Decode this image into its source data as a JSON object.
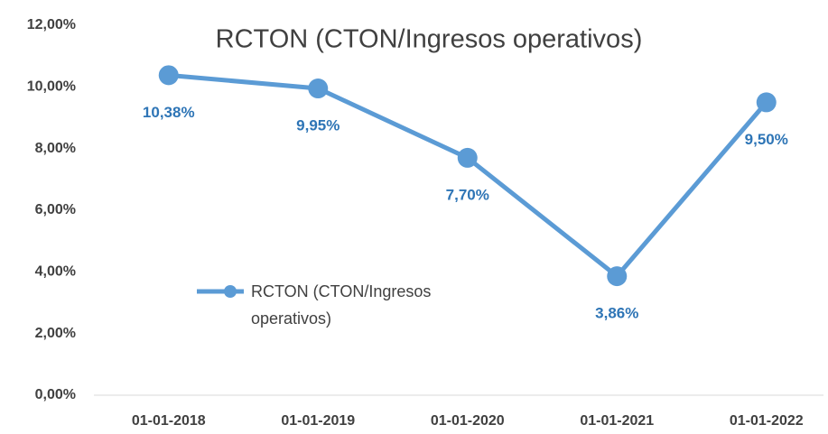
{
  "chart_data": {
    "type": "line",
    "title": "RCTON (CTON/Ingresos operativos)",
    "categories": [
      "01-01-2018",
      "01-01-2019",
      "01-01-2020",
      "01-01-2021",
      "01-01-2022"
    ],
    "series": [
      {
        "name": "RCTON (CTON/Ingresos operativos)",
        "color": "#5b9bd5",
        "values": [
          10.38,
          9.95,
          7.7,
          3.86,
          9.5
        ],
        "value_labels": [
          "10,38%",
          "9,95%",
          "7,70%",
          "3,86%",
          "9,50%"
        ]
      }
    ],
    "ylim": [
      0,
      12
    ],
    "yticks": [
      {
        "value": 0,
        "label": "0,00%"
      },
      {
        "value": 2,
        "label": "2,00%"
      },
      {
        "value": 4,
        "label": "4,00%"
      },
      {
        "value": 6,
        "label": "6,00%"
      },
      {
        "value": 8,
        "label": "8,00%"
      },
      {
        "value": 10,
        "label": "10,00%"
      },
      {
        "value": 12,
        "label": "12,00%"
      }
    ],
    "grid": false,
    "legend": "left"
  }
}
